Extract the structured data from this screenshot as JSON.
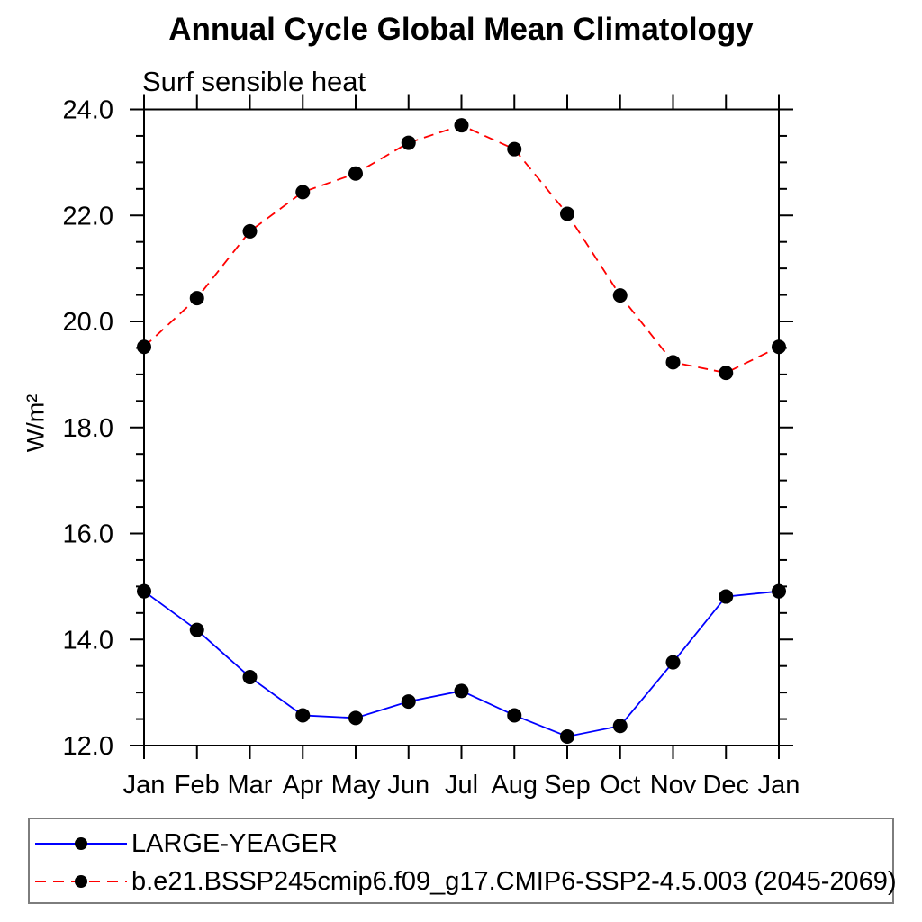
{
  "title": "Annual Cycle Global Mean Climatology",
  "subtitle": "Surf sensible heat",
  "y_axis_unit": "W/m²",
  "legend": {
    "border_color": "#7d7d7d",
    "entries": [
      {
        "label": "LARGE-YEAGER",
        "color": "#0000ff",
        "line_style": "solid",
        "marker": "filled-circle",
        "marker_color": "#000000"
      },
      {
        "label": "b.e21.BSSP245cmip6.f09_g17.CMIP6-SSP2-4.5.003 (2045-2069)",
        "color": "#ff0000",
        "line_style": "dashed",
        "marker": "filled-circle",
        "marker_color": "#000000"
      }
    ]
  },
  "chart_data": {
    "type": "line",
    "title": "Annual Cycle Global Mean Climatology",
    "subtitle": "Surf sensible heat",
    "xlabel": "",
    "ylabel": "W/m²",
    "categories": [
      "Jan",
      "Feb",
      "Mar",
      "Apr",
      "May",
      "Jun",
      "Jul",
      "Aug",
      "Sep",
      "Oct",
      "Nov",
      "Dec",
      "Jan"
    ],
    "series": [
      {
        "name": "LARGE-YEAGER",
        "color": "#0000ff",
        "line_style": "solid",
        "marker": "filled-circle",
        "values": [
          14.91,
          14.18,
          13.29,
          12.57,
          12.52,
          12.83,
          13.03,
          12.57,
          12.17,
          12.37,
          13.57,
          14.81,
          14.91
        ]
      },
      {
        "name": "b.e21.BSSP245cmip6.f09_g17.CMIP6-SSP2-4.5.003 (2045-2069)",
        "color": "#ff0000",
        "line_style": "dashed",
        "values": [
          19.52,
          20.44,
          21.7,
          22.44,
          22.79,
          23.37,
          23.7,
          23.25,
          22.03,
          20.49,
          19.23,
          19.03,
          19.52
        ]
      }
    ],
    "ylim": [
      12.0,
      24.0
    ],
    "ytick_values": [
      12,
      14,
      16,
      18,
      20,
      22,
      24
    ],
    "ytick_labels": [
      "12.0",
      "14.0",
      "16.0",
      "18.0",
      "20.0",
      "22.0",
      "24.0"
    ],
    "ytick_minor_step": 0.5,
    "grid": false,
    "legend_position": "bottom",
    "marker_color": "#000000",
    "axis_color": "#000000"
  }
}
